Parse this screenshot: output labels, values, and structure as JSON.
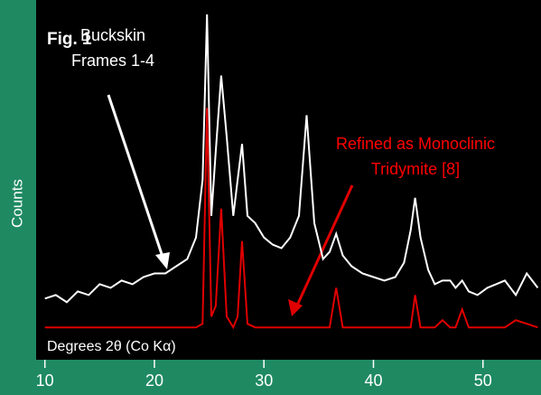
{
  "chart_data": {
    "type": "line",
    "title": "Fig. 1",
    "x_label": "Degrees 2θ (Co Kα)",
    "y_label": "Counts",
    "annotations": [
      {
        "lines": [
          "Buckskin",
          "Frames 1-4"
        ],
        "color": "#ffffff"
      },
      {
        "lines": [
          "Refined as Monoclinic",
          "Tridymite [8]"
        ],
        "color": "#ff0000"
      }
    ],
    "x": [
      10,
      11,
      12,
      13,
      14,
      15,
      16,
      17,
      18,
      19,
      20,
      21,
      22,
      23,
      23.8,
      24.4,
      24.8,
      25.2,
      25.6,
      26.1,
      26.6,
      27.2,
      27.6,
      28.0,
      28.5,
      29.2,
      30,
      30.8,
      31.6,
      32.4,
      33.2,
      33.9,
      34.6,
      35.4,
      36.0,
      36.6,
      37.2,
      38,
      39,
      40,
      41,
      42,
      42.8,
      43.4,
      43.8,
      44.3,
      45,
      45.6,
      46.3,
      47,
      47.5,
      48.1,
      48.7,
      49.5,
      50.4,
      51.2,
      52,
      53,
      54,
      55
    ],
    "series": [
      {
        "name": "Buckskin Frames 1-4",
        "color": "#ffffff",
        "values": [
          17,
          18,
          16,
          19,
          18,
          21,
          20,
          22,
          21,
          23,
          24,
          24,
          26,
          28,
          34,
          50,
          96,
          40,
          58,
          79,
          62,
          40,
          50,
          60,
          40,
          38,
          34,
          32,
          31,
          34,
          40,
          68,
          38,
          28,
          30,
          35,
          29,
          26,
          24,
          23,
          22,
          23,
          27,
          36,
          45,
          34,
          25,
          21,
          22,
          22,
          20,
          22,
          19,
          18,
          20,
          21,
          22,
          18,
          24,
          20
        ]
      },
      {
        "name": "Refined as Monoclinic Tridymite [8]",
        "color": "#e00000",
        "values": [
          9,
          9,
          9,
          9,
          9,
          9,
          9,
          9,
          9,
          9,
          9,
          9,
          9,
          9,
          9,
          10,
          70,
          12,
          15,
          42,
          12,
          9,
          12,
          33,
          10,
          9,
          9,
          9,
          9,
          9,
          9,
          9,
          9,
          9,
          9,
          20,
          9,
          9,
          9,
          9,
          9,
          9,
          9,
          9,
          18,
          9,
          9,
          9,
          11,
          9,
          9,
          14,
          9,
          9,
          9,
          9,
          9,
          11,
          10,
          9
        ]
      }
    ],
    "xlim": [
      9.2,
      55.3
    ],
    "xticks": [
      10,
      20,
      30,
      40,
      50
    ],
    "ylim": [
      0,
      100
    ]
  }
}
